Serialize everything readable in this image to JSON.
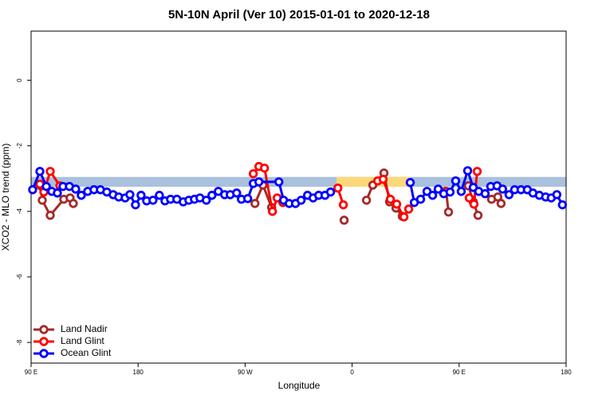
{
  "chart_data": {
    "type": "line",
    "title": "5N-10N April (Ver 10)   2015-01-01 to 2020-12-18",
    "x_label": "Longitude",
    "y_label": "XCO2 - MLO trend (ppm)",
    "xlim": [
      90,
      540
    ],
    "ylim": [
      -8.63,
      1.5
    ],
    "xticks": [
      {
        "value": 90,
        "label": "90 E"
      },
      180,
      {
        "value": 270,
        "label": "90 W"
      },
      {
        "value": 360,
        "label": "0"
      },
      {
        "value": 450,
        "label": "90 E"
      },
      {
        "value": 540,
        "label": "180"
      }
    ],
    "yticks": [
      0,
      -2,
      -4,
      -6,
      -8
    ],
    "legend": "bottom-left",
    "bands": [
      {
        "xlim": [
          90,
          540
        ],
        "ylim": [
          -3.25,
          -2.95
        ],
        "color": "#a9c1dc"
      },
      {
        "xlim": [
          347,
          409
        ],
        "ylim": [
          -3.25,
          -2.95
        ],
        "color": "#fdd87a"
      }
    ],
    "series": [
      {
        "name": "Land Nadir",
        "color": "#a52a2a",
        "x": [
          98.1,
          99.4,
          106.1,
          117.5,
          122.8,
          125.5,
          null,
          278.3,
          285.0,
          292.3,
          null,
          353.3,
          null,
          372.1,
          377.4,
          386.8,
          391.5,
          396.9,
          402.2,
          null,
          439.1,
          441.1,
          null,
          457.8,
          461.9,
          465.9,
          null,
          477.3,
          482.6,
          485.3
        ],
        "values": [
          -3.22,
          -3.66,
          -4.12,
          -3.63,
          -3.59,
          -3.76,
          null,
          -3.76,
          -3.2,
          -3.88,
          null,
          -4.27,
          null,
          -3.66,
          -3.2,
          -2.83,
          -3.71,
          -3.9,
          -4.15,
          null,
          -3.39,
          -4.02,
          null,
          -3.22,
          -3.71,
          -4.12,
          null,
          -3.63,
          -3.56,
          -3.76
        ]
      },
      {
        "name": "Land Glint",
        "color": "#ff0000",
        "x": [
          97.4,
          100.7,
          106.1,
          114.2,
          null,
          276.9,
          281.6,
          286.3,
          293.0,
          297.0,
          301.7,
          null,
          348.0,
          352.6,
          null,
          381.5,
          386.1,
          392.2,
          397.5,
          403.6,
          407.6,
          null,
          438.4,
          null,
          458.5,
          462.5,
          465.2
        ],
        "values": [
          -3.17,
          -3.41,
          -2.78,
          -3.22,
          null,
          -2.85,
          -2.63,
          -2.68,
          -4.0,
          -3.59,
          -3.73,
          null,
          -3.29,
          -3.8,
          null,
          -3.07,
          -3.02,
          -3.63,
          -3.78,
          -4.17,
          -3.93,
          null,
          -3.39,
          null,
          -3.59,
          -3.78,
          -2.78
        ]
      },
      {
        "name": "Ocean Glint",
        "color": "#0000ff",
        "x": [
          91.3,
          97.4,
          102.8,
          107.4,
          112.1,
          116.8,
          122.2,
          127.5,
          132.2,
          137.6,
          142.9,
          148.3,
          153.7,
          159.0,
          163.7,
          169.1,
          173.1,
          177.8,
          182.5,
          187.2,
          192.5,
          197.9,
          202.6,
          207.3,
          212.6,
          218.0,
          222.7,
          227.4,
          232.0,
          237.4,
          242.1,
          247.5,
          252.8,
          257.5,
          262.9,
          266.9,
          272.2,
          276.9,
          281.6,
          298.4,
          302.4,
          307.1,
          312.4,
          317.1,
          322.5,
          327.2,
          331.9,
          337.2,
          341.9,
          null,
          408.9,
          412.3,
          417.6,
          423.0,
          427.7,
          432.4,
          437.1,
          442.4,
          447.1,
          451.8,
          457.2,
          461.9,
          466.5,
          471.9,
          476.6,
          481.9,
          486.6,
          492.0,
          496.7,
          502.1,
          507.4,
          512.1,
          517.5,
          522.8,
          527.5,
          532.2,
          536.9
        ],
        "values": [
          -3.34,
          -2.78,
          -3.24,
          -3.39,
          -3.44,
          -3.24,
          -3.24,
          -3.32,
          -3.51,
          -3.39,
          -3.34,
          -3.34,
          -3.41,
          -3.49,
          -3.56,
          -3.59,
          -3.49,
          -3.8,
          -3.51,
          -3.68,
          -3.66,
          -3.51,
          -3.68,
          -3.63,
          -3.63,
          -3.71,
          -3.66,
          -3.63,
          -3.59,
          -3.66,
          -3.51,
          -3.39,
          -3.49,
          -3.49,
          -3.44,
          -3.63,
          -3.61,
          -3.15,
          -3.1,
          -3.1,
          -3.66,
          -3.76,
          -3.76,
          -3.66,
          -3.51,
          -3.59,
          -3.51,
          -3.51,
          -3.41,
          null,
          -3.12,
          -3.73,
          -3.63,
          -3.39,
          -3.51,
          -3.32,
          -3.46,
          -3.41,
          -3.07,
          -3.39,
          -2.76,
          -3.27,
          -3.39,
          -3.46,
          -3.24,
          -3.22,
          -3.32,
          -3.49,
          -3.34,
          -3.34,
          -3.34,
          -3.44,
          -3.51,
          -3.56,
          -3.59,
          -3.49,
          -3.8
        ]
      }
    ]
  }
}
